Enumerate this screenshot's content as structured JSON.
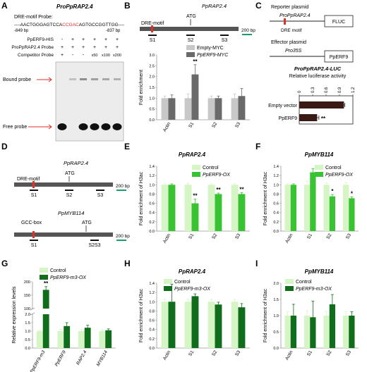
{
  "panels": {
    "A": {
      "letter": "A",
      "title": "ProPpRAP2.4",
      "probe_label": "DRE-motif Probe:",
      "probe_seq_prefix": "----AACTGGGAGTCCA",
      "probe_seq_highlight": "CCGAC",
      "probe_seq_suffix": "AGTGCCGGTTGG----",
      "left_pos": "-849 bp",
      "right_pos": "-837 bp",
      "row_labels": [
        "PpERF9-HIS",
        "ProPpRAP2.4 Probe",
        "Competitor Probe"
      ],
      "row_signs": [
        [
          "-",
          "+",
          "+",
          "+",
          "+",
          "+"
        ],
        [
          "+",
          "+",
          "+",
          "+",
          "+",
          "+"
        ],
        [
          "+",
          "-",
          "-",
          "x50",
          "x100",
          "x200"
        ]
      ],
      "bound_label": "Bound probe",
      "free_label": "Free probe"
    },
    "B": {
      "letter": "B",
      "gene": "PpRAP2.4",
      "motif": "DRE-motif",
      "atg": "ATG",
      "sites": [
        "S1",
        "S2",
        "S3"
      ],
      "scale": "200 bp",
      "legend": [
        "Empty-MYC",
        "PpERF9-MYC"
      ],
      "ylabel": "Fold enrichment",
      "significance": "**"
    },
    "C": {
      "letter": "C",
      "reporter_label": "Reporter plasmid",
      "reporter_promoter": "ProPpRAP2.4",
      "reporter_gene": "FLUC",
      "dre_label": "DRE motif",
      "effector_label": "Effector plasmid",
      "effector_promoter": "Pro35S",
      "effector_gene": "PpERF9",
      "assay_title": "ProPpRAP2.4-LUC",
      "assay_subtitle": "Relative luciferase activity",
      "significance": "**"
    },
    "D": {
      "letter": "D",
      "gene1": "PpRAP2.4",
      "motif1": "DRE-motif",
      "atg": "ATG",
      "sites1": [
        "S1",
        "S2",
        "S3"
      ],
      "gene2": "PpMYB114",
      "motif2": "GCC-box",
      "sites2": [
        "S1",
        "S2S3"
      ],
      "scale": "200 bp"
    },
    "E": {
      "letter": "E",
      "title": "PpRAP2.4",
      "ylabel": "Fold enrichment of H3ac",
      "legend": [
        "Control",
        "PpERF9-OX"
      ]
    },
    "F": {
      "letter": "F",
      "title": "PpMYB114",
      "ylabel": "Fold enrichment of H3ac",
      "legend": [
        "Control",
        "PpERF9-OX"
      ]
    },
    "G": {
      "letter": "G",
      "ylabel": "Relative expression levels",
      "legend": [
        "Control",
        "PpERF9-m3-OX"
      ]
    },
    "H": {
      "letter": "H",
      "title": "PpRAP2.4",
      "ylabel": "Fold enrichment of H3ac",
      "legend": [
        "Control",
        "PpERF9-m3-OX"
      ]
    },
    "I": {
      "letter": "I",
      "title": "PpMYB114",
      "ylabel": "Fold enrichment of H3ac",
      "legend": [
        "Control",
        "PpERF9-m3-OX"
      ]
    }
  },
  "colors": {
    "empty": "#c8c8c8",
    "erf9myc": "#6a6a6a",
    "control": "#d6f5c4",
    "ox": "#39c232",
    "m3": "#0f6d1c",
    "red": "#e0302a",
    "scalebar": "#14a06a",
    "gene": "#555555"
  },
  "chart_data": [
    {
      "panel": "B",
      "type": "bar",
      "categories": [
        "Actin",
        "S1",
        "S2",
        "S3"
      ],
      "series": [
        {
          "name": "Empty-MYC",
          "values": [
            1.0,
            1.0,
            1.0,
            1.0
          ],
          "errors": [
            0.1,
            0.2,
            0.1,
            0.2
          ]
        },
        {
          "name": "PpERF9-MYC",
          "values": [
            1.0,
            2.1,
            1.0,
            1.1
          ],
          "errors": [
            0.15,
            0.45,
            0.1,
            0.35
          ]
        }
      ],
      "ylim": [
        0,
        3.0
      ],
      "yticks": [
        0,
        0.5,
        1.0,
        1.5,
        2.0,
        2.5,
        3.0
      ],
      "ylabel": "Fold enrichment",
      "annotations": [
        {
          "category": "S1",
          "text": "**"
        }
      ]
    },
    {
      "panel": "C",
      "type": "bar",
      "orientation": "horizontal",
      "categories": [
        "Empty vector",
        "PpERF9"
      ],
      "values": [
        1.0,
        0.4
      ],
      "errors": [
        0.02,
        0.04
      ],
      "xlim": [
        0,
        1.2
      ],
      "xticks": [
        0,
        0.3,
        0.6,
        0.9,
        1.2
      ],
      "xlabel": "Relative luciferase activity",
      "annotations": [
        {
          "category": "PpERF9",
          "text": "**"
        }
      ]
    },
    {
      "panel": "E",
      "type": "bar",
      "categories": [
        "Actin",
        "S1",
        "S2",
        "S3"
      ],
      "series": [
        {
          "name": "Control",
          "values": [
            1.0,
            1.0,
            1.0,
            1.0
          ],
          "errors": [
            0.02,
            0.03,
            0.02,
            0.02
          ]
        },
        {
          "name": "PpERF9-OX",
          "values": [
            1.0,
            0.6,
            0.8,
            0.8
          ],
          "errors": [
            0.02,
            0.09,
            0.02,
            0.03
          ]
        }
      ],
      "ylim": [
        0,
        1.4
      ],
      "yticks": [
        0,
        0.2,
        0.4,
        0.6,
        0.8,
        1.0,
        1.2,
        1.4
      ],
      "ylabel": "Fold enrichment of H3ac",
      "annotations": [
        {
          "category": "S1",
          "text": "**"
        },
        {
          "category": "S2",
          "text": "**"
        },
        {
          "category": "S3",
          "text": "**"
        }
      ]
    },
    {
      "panel": "F",
      "type": "bar",
      "categories": [
        "Actin",
        "S1",
        "S2",
        "S3"
      ],
      "series": [
        {
          "name": "Control",
          "values": [
            1.0,
            1.0,
            1.0,
            1.0
          ],
          "errors": [
            0.02,
            0.08,
            0.04,
            0.05
          ]
        },
        {
          "name": "PpERF9-OX",
          "values": [
            1.0,
            1.27,
            0.75,
            0.71
          ],
          "errors": [
            0.02,
            0.08,
            0.04,
            0.03
          ]
        }
      ],
      "ylim": [
        0,
        1.4
      ],
      "yticks": [
        0,
        0.2,
        0.4,
        0.6,
        0.8,
        1.0,
        1.2,
        1.4
      ],
      "ylabel": "Fold enrichment of H3ac",
      "annotations": [
        {
          "category": "S2",
          "text": "*"
        },
        {
          "category": "S3",
          "text": "*"
        }
      ]
    },
    {
      "panel": "G",
      "type": "bar",
      "categories": [
        "PpERF9-m3",
        "PpERF9",
        "RAP2.4",
        "MYB114"
      ],
      "series": [
        {
          "name": "Control",
          "values": [
            1.0,
            1.0,
            1.0,
            1.0
          ],
          "errors": [
            0.05,
            0.1,
            0.1,
            0.08
          ]
        },
        {
          "name": "PpERF9-m3-OX",
          "values": [
            170,
            1.3,
            1.2,
            1.05
          ],
          "errors": [
            12,
            0.2,
            0.15,
            0.08
          ]
        }
      ],
      "yticks": [
        0,
        0.5,
        1.0,
        1.5,
        2.0,
        100,
        150,
        200
      ],
      "ylabel": "Relative expression levels",
      "axis_break": true,
      "annotations": [
        {
          "category": "PpERF9-m3",
          "text": "**"
        }
      ]
    },
    {
      "panel": "H",
      "type": "bar",
      "categories": [
        "Actin",
        "S1",
        "S2",
        "S3"
      ],
      "series": [
        {
          "name": "Control",
          "values": [
            1.0,
            1.0,
            1.0,
            1.0
          ],
          "errors": [
            0.05,
            0.05,
            0.05,
            0.05
          ]
        },
        {
          "name": "PpERF9-m3-OX",
          "values": [
            1.0,
            1.12,
            0.94,
            0.88
          ],
          "errors": [
            0.38,
            0.05,
            0.05,
            0.08
          ]
        }
      ],
      "ylim": [
        0,
        1.4
      ],
      "yticks": [
        0,
        0.2,
        0.4,
        0.6,
        0.8,
        1.0,
        1.2,
        1.4
      ],
      "ylabel": "Fold enrichment of H3ac"
    },
    {
      "panel": "I",
      "type": "bar",
      "categories": [
        "Actin",
        "S1",
        "S2",
        "S3"
      ],
      "series": [
        {
          "name": "Control",
          "values": [
            1.0,
            1.0,
            1.0,
            1.0
          ],
          "errors": [
            0.12,
            0.15,
            0.12,
            0.12
          ]
        },
        {
          "name": "PpERF9-m3-OX",
          "values": [
            1.0,
            0.95,
            1.35,
            1.0
          ],
          "errors": [
            0.35,
            0.5,
            0.3,
            0.12
          ]
        }
      ],
      "ylim": [
        0,
        2.0
      ],
      "yticks": [
        0,
        0.5,
        1.0,
        1.5,
        2.0
      ],
      "ylabel": "Fold enrichment of H3ac"
    }
  ]
}
